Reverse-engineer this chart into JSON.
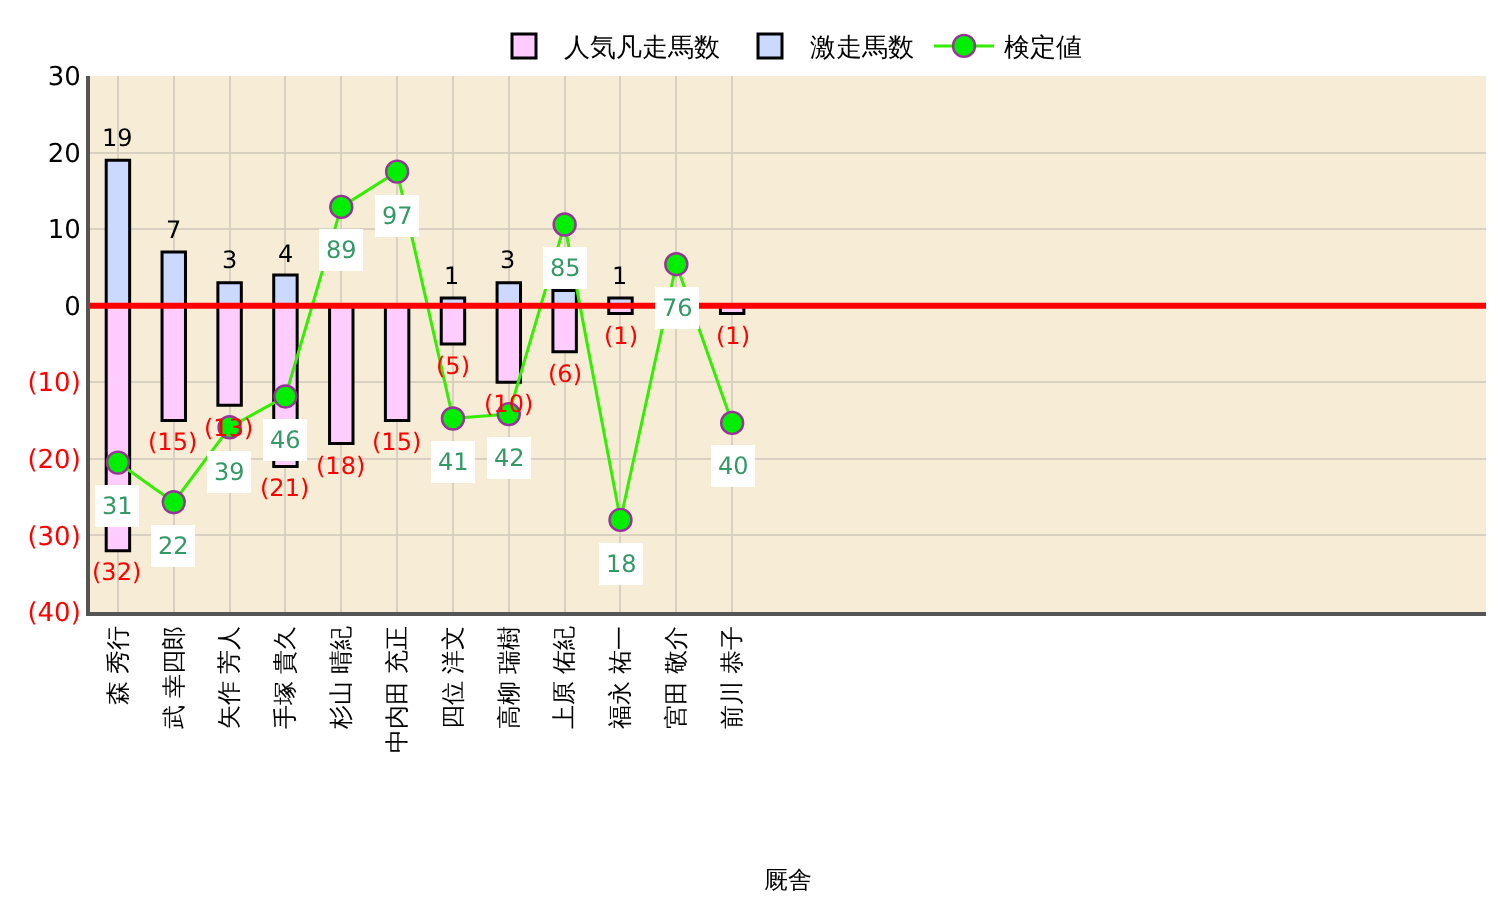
{
  "chart_data": {
    "type": "bar",
    "stacked": true,
    "xlabel": "厩舎",
    "categories": [
      "森 秀行",
      "武 幸四郎",
      "矢作 芳人",
      "手塚 貴久",
      "杉山 晴紀",
      "中内田 充正",
      "四位 洋文",
      "高柳 瑞樹",
      "上原 佑紀",
      "福永 祐一",
      "宮田 敬介",
      "前川 恭子",
      null,
      null,
      null,
      null,
      null,
      null,
      null,
      null,
      null,
      null,
      null,
      null,
      null
    ],
    "series": [
      {
        "name": "人気凡走馬数",
        "color": "#ffccff",
        "values": [
          -32,
          -15,
          -13,
          -21,
          -18,
          -15,
          -5,
          -10,
          -6,
          -1,
          null,
          -1,
          null,
          null,
          null,
          null,
          null,
          null,
          null,
          null,
          null,
          null,
          null,
          null,
          null
        ],
        "value_labels": [
          "(32)",
          "(15)",
          "(13)",
          "(21)",
          "(18)",
          "(15)",
          "(5)",
          "(10)",
          "(6)",
          "(1)",
          null,
          "(1)",
          null,
          null,
          null,
          null,
          null,
          null,
          null,
          null,
          null,
          null,
          null,
          null,
          null
        ]
      },
      {
        "name": "激走馬数",
        "color": "#ccd9ff",
        "values": [
          19,
          7,
          3,
          4,
          null,
          null,
          1,
          3,
          2,
          1,
          null,
          null,
          null,
          null,
          null,
          null,
          null,
          null,
          null,
          null,
          null,
          null,
          null,
          null,
          null
        ],
        "value_labels": [
          "19",
          "7",
          "3",
          "4",
          null,
          null,
          "1",
          "3",
          null,
          "1",
          null,
          null,
          null,
          null,
          null,
          null,
          null,
          null,
          null,
          null,
          null,
          null,
          null,
          null,
          null
        ]
      },
      {
        "name": "検定値",
        "type": "line",
        "axis": "y2",
        "color": "#33ee00",
        "marker": "circle",
        "data_labels": true,
        "values": [
          31,
          22,
          39,
          46,
          89,
          97,
          41,
          42,
          85,
          18,
          76,
          40,
          null,
          null,
          null,
          null,
          null,
          null,
          null,
          null,
          null,
          null,
          null,
          null,
          null
        ]
      }
    ],
    "ylim": [
      -40,
      30
    ],
    "yticks": [
      {
        "value": -40,
        "label": "(40)"
      },
      {
        "value": -30,
        "label": "(30)"
      },
      {
        "value": -20,
        "label": "(20)"
      },
      {
        "value": -10,
        "label": "(10)"
      },
      0,
      10,
      20,
      30
    ],
    "y2lim": [
      -2.9,
      118.7
    ],
    "ref_lines": [
      {
        "axis": "y",
        "value": 0,
        "color": "#ff0000"
      }
    ],
    "grid": true,
    "legend": "top"
  }
}
